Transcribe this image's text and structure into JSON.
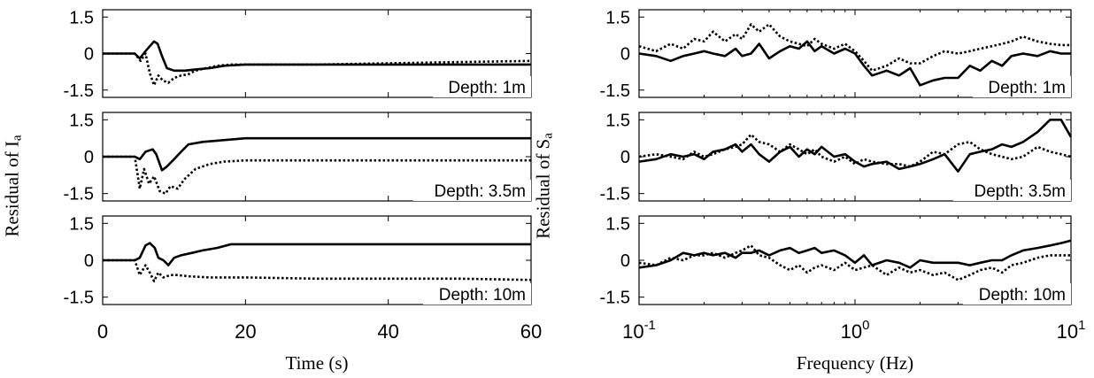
{
  "ylabel_left": {
    "base": "Residual of I",
    "sub": "a"
  },
  "ylabel_right": {
    "base": "Residual of S",
    "sub": "a"
  },
  "xlabel_left": "Time (s)",
  "xlabel_right": "Frequency (Hz)",
  "chart_data": [
    {
      "type": "line",
      "panel": "time",
      "row": 0,
      "annotation": "Depth: 1m",
      "xlim": [
        0,
        60
      ],
      "ylim": [
        -1.8,
        1.8
      ],
      "yticks": [
        "1.5",
        "0",
        "-1.5"
      ],
      "series": [
        {
          "style": "solid",
          "x": [
            0,
            4.5,
            5.2,
            6,
            6.6,
            7.2,
            7.7,
            8.3,
            9,
            10,
            11.5,
            13,
            15,
            17,
            20,
            30,
            40,
            50,
            60
          ],
          "y": [
            0,
            0,
            -0.2,
            0.1,
            0.3,
            0.5,
            0.4,
            -0.1,
            -0.6,
            -0.7,
            -0.7,
            -0.65,
            -0.6,
            -0.5,
            -0.45,
            -0.45,
            -0.45,
            -0.45,
            -0.45
          ]
        },
        {
          "style": "dotted",
          "x": [
            0,
            4.5,
            5.3,
            6,
            6.6,
            7.2,
            7.8,
            8.4,
            9.2,
            10,
            11,
            12,
            13,
            14.5,
            16,
            18,
            20,
            30,
            40,
            50,
            60
          ],
          "y": [
            0,
            0,
            -0.3,
            0,
            -0.8,
            -1.3,
            -0.9,
            -1.1,
            -1.2,
            -1.0,
            -0.9,
            -0.85,
            -0.7,
            -0.6,
            -0.5,
            -0.45,
            -0.45,
            -0.45,
            -0.4,
            -0.35,
            -0.3
          ]
        }
      ]
    },
    {
      "type": "line",
      "panel": "time",
      "row": 1,
      "annotation": "Depth: 3.5m",
      "xlim": [
        0,
        60
      ],
      "ylim": [
        -1.8,
        1.8
      ],
      "yticks": [
        "1.5",
        "0",
        "-1.5"
      ],
      "series": [
        {
          "style": "solid",
          "x": [
            0,
            4.5,
            5.2,
            6,
            7,
            7.5,
            8.3,
            9,
            10,
            11,
            12,
            14,
            16,
            18,
            20,
            30,
            40,
            50,
            60
          ],
          "y": [
            0,
            0,
            -0.1,
            0.2,
            0.3,
            0.1,
            -0.55,
            -0.4,
            -0.1,
            0.2,
            0.5,
            0.6,
            0.65,
            0.7,
            0.75,
            0.75,
            0.75,
            0.75,
            0.75
          ]
        },
        {
          "style": "dotted",
          "x": [
            0,
            4.5,
            5.2,
            5.8,
            6.5,
            7.2,
            8,
            8.8,
            9.5,
            10.5,
            11.5,
            13,
            15,
            17,
            20,
            30,
            40,
            50,
            60
          ],
          "y": [
            0,
            0,
            -1.3,
            -0.5,
            -1.1,
            -0.8,
            -1.4,
            -1.5,
            -1.2,
            -1.3,
            -0.9,
            -0.5,
            -0.3,
            -0.2,
            -0.15,
            -0.15,
            -0.15,
            -0.15,
            -0.15
          ]
        }
      ]
    },
    {
      "type": "line",
      "panel": "time",
      "row": 2,
      "annotation": "Depth: 10m",
      "xlim": [
        0,
        60
      ],
      "ylim": [
        -1.8,
        1.8
      ],
      "yticks": [
        "1.5",
        "0",
        "-1.5"
      ],
      "series": [
        {
          "style": "solid",
          "x": [
            0,
            4.5,
            5.2,
            6,
            6.6,
            7.3,
            7.8,
            8.5,
            9.2,
            10,
            11,
            12.5,
            14,
            16,
            18,
            20,
            30,
            40,
            50,
            60
          ],
          "y": [
            0,
            0,
            0.1,
            0.6,
            0.7,
            0.5,
            0.1,
            0.0,
            -0.2,
            0.1,
            0.2,
            0.3,
            0.4,
            0.5,
            0.65,
            0.65,
            0.65,
            0.65,
            0.65,
            0.65
          ]
        },
        {
          "style": "dotted",
          "x": [
            0,
            4.5,
            5.2,
            6,
            6.6,
            7.2,
            7.8,
            8.5,
            9.5,
            10.5,
            12,
            15,
            20,
            30,
            40,
            50,
            60
          ],
          "y": [
            0,
            0,
            -0.6,
            -0.2,
            -0.5,
            -0.85,
            -0.5,
            -0.7,
            -0.6,
            -0.6,
            -0.65,
            -0.7,
            -0.7,
            -0.75,
            -0.75,
            -0.75,
            -0.8
          ]
        }
      ]
    },
    {
      "type": "line",
      "panel": "frequency",
      "row": 0,
      "annotation": "Depth: 1m",
      "xscale": "log",
      "xlim": [
        0.1,
        10
      ],
      "ylim": [
        -1.8,
        1.8
      ],
      "yticks": [
        "1.5",
        "0",
        "-1.5"
      ],
      "series": [
        {
          "style": "solid",
          "x": [
            0.1,
            0.12,
            0.14,
            0.16,
            0.18,
            0.2,
            0.22,
            0.25,
            0.28,
            0.3,
            0.33,
            0.36,
            0.4,
            0.45,
            0.5,
            0.55,
            0.6,
            0.65,
            0.7,
            0.8,
            0.9,
            1.0,
            1.1,
            1.2,
            1.4,
            1.6,
            1.8,
            2.0,
            2.3,
            2.6,
            3.0,
            3.4,
            3.8,
            4.3,
            4.8,
            5.3,
            6,
            7,
            8,
            9,
            10
          ],
          "y": [
            0.0,
            -0.1,
            -0.3,
            -0.1,
            0.0,
            0.1,
            0.0,
            -0.1,
            0.2,
            -0.1,
            0.0,
            0.4,
            -0.2,
            0.1,
            0.3,
            0.2,
            0.5,
            0.1,
            0.3,
            0.0,
            0.2,
            0.0,
            -0.5,
            -0.9,
            -0.7,
            -0.9,
            -0.6,
            -1.3,
            -1.1,
            -1.0,
            -1.0,
            -0.5,
            -0.7,
            -0.3,
            -0.5,
            -0.1,
            0.0,
            -0.1,
            0.1,
            0.0,
            0.0
          ]
        },
        {
          "style": "dotted",
          "x": [
            0.1,
            0.12,
            0.14,
            0.16,
            0.18,
            0.2,
            0.22,
            0.25,
            0.28,
            0.3,
            0.33,
            0.36,
            0.4,
            0.45,
            0.5,
            0.55,
            0.6,
            0.65,
            0.7,
            0.8,
            0.9,
            1.0,
            1.1,
            1.2,
            1.4,
            1.6,
            1.8,
            2.0,
            2.3,
            2.6,
            3.0,
            3.4,
            3.8,
            4.3,
            4.8,
            5.3,
            6,
            7,
            8,
            9,
            10
          ],
          "y": [
            0.3,
            0.1,
            0.4,
            0.2,
            0.6,
            0.5,
            0.9,
            0.5,
            0.8,
            0.6,
            1.2,
            0.9,
            1.2,
            0.7,
            0.5,
            0.4,
            0.3,
            0.6,
            0.4,
            0.2,
            0.4,
            0.1,
            -0.3,
            -0.7,
            -0.5,
            -0.2,
            -0.4,
            -0.4,
            -0.1,
            0.1,
            0.0,
            0.1,
            0.2,
            0.3,
            0.4,
            0.5,
            0.7,
            0.5,
            0.4,
            0.35,
            0.35
          ]
        }
      ]
    },
    {
      "type": "line",
      "panel": "frequency",
      "row": 1,
      "annotation": "Depth: 3.5m",
      "xscale": "log",
      "xlim": [
        0.1,
        10
      ],
      "ylim": [
        -1.8,
        1.8
      ],
      "yticks": [
        "1.5",
        "0",
        "-1.5"
      ],
      "series": [
        {
          "style": "solid",
          "x": [
            0.1,
            0.12,
            0.14,
            0.16,
            0.18,
            0.2,
            0.22,
            0.25,
            0.28,
            0.3,
            0.33,
            0.36,
            0.4,
            0.45,
            0.5,
            0.55,
            0.6,
            0.65,
            0.7,
            0.8,
            0.9,
            1.0,
            1.1,
            1.2,
            1.4,
            1.6,
            1.8,
            2.0,
            2.3,
            2.6,
            3.0,
            3.4,
            3.8,
            4.3,
            4.8,
            5.3,
            6,
            7,
            8,
            9,
            10
          ],
          "y": [
            -0.2,
            -0.1,
            0.1,
            0.0,
            0.1,
            -0.1,
            0.2,
            0.3,
            0.5,
            0.2,
            0.5,
            0.1,
            -0.2,
            0.2,
            0.4,
            0.0,
            0.3,
            0.1,
            0.4,
            0.0,
            0.1,
            -0.2,
            -0.4,
            -0.3,
            -0.2,
            -0.5,
            -0.4,
            -0.3,
            -0.1,
            0.1,
            -0.6,
            0.1,
            0.2,
            0.3,
            0.5,
            0.4,
            0.6,
            1.0,
            1.5,
            1.5,
            0.8
          ]
        },
        {
          "style": "dotted",
          "x": [
            0.1,
            0.12,
            0.14,
            0.16,
            0.18,
            0.2,
            0.22,
            0.25,
            0.28,
            0.3,
            0.33,
            0.36,
            0.4,
            0.45,
            0.5,
            0.55,
            0.6,
            0.65,
            0.7,
            0.8,
            0.9,
            1.0,
            1.1,
            1.2,
            1.4,
            1.6,
            1.8,
            2.0,
            2.3,
            2.6,
            3.0,
            3.4,
            3.8,
            4.3,
            4.8,
            5.3,
            6,
            7,
            8,
            9,
            10
          ],
          "y": [
            0.0,
            0.1,
            0.0,
            -0.1,
            0.2,
            0.0,
            0.1,
            0.3,
            0.4,
            0.5,
            0.9,
            0.6,
            0.5,
            0.2,
            0.5,
            0.3,
            0.1,
            0.3,
            0.0,
            -0.2,
            0.0,
            -0.3,
            -0.1,
            -0.2,
            -0.3,
            -0.3,
            -0.4,
            -0.2,
            0.2,
            0.1,
            0.5,
            0.6,
            0.3,
            0.1,
            0.0,
            -0.1,
            0.0,
            0.4,
            0.2,
            0.1,
            0.0
          ]
        }
      ]
    },
    {
      "type": "line",
      "panel": "frequency",
      "row": 2,
      "annotation": "Depth: 10m",
      "xscale": "log",
      "xlim": [
        0.1,
        10
      ],
      "ylim": [
        -1.8,
        1.8
      ],
      "yticks": [
        "1.5",
        "0",
        "-1.5"
      ],
      "series": [
        {
          "style": "solid",
          "x": [
            0.1,
            0.12,
            0.14,
            0.16,
            0.18,
            0.2,
            0.22,
            0.25,
            0.28,
            0.3,
            0.33,
            0.36,
            0.4,
            0.45,
            0.5,
            0.55,
            0.6,
            0.65,
            0.7,
            0.8,
            0.9,
            1.0,
            1.1,
            1.2,
            1.4,
            1.6,
            1.8,
            2.0,
            2.3,
            2.6,
            3.0,
            3.4,
            3.8,
            4.3,
            4.8,
            5.3,
            6,
            7,
            8,
            9,
            10
          ],
          "y": [
            -0.3,
            -0.2,
            0.0,
            0.3,
            0.2,
            0.3,
            0.2,
            0.3,
            0.1,
            0.3,
            0.3,
            0.4,
            0.2,
            0.4,
            0.5,
            0.3,
            0.4,
            0.5,
            0.3,
            0.4,
            0.2,
            -0.1,
            0.2,
            -0.2,
            0.0,
            -0.1,
            -0.3,
            0.0,
            -0.1,
            -0.1,
            -0.1,
            -0.2,
            -0.1,
            0.0,
            0.0,
            0.2,
            0.4,
            0.5,
            0.6,
            0.7,
            0.8
          ]
        },
        {
          "style": "dotted",
          "x": [
            0.1,
            0.12,
            0.14,
            0.16,
            0.18,
            0.2,
            0.22,
            0.25,
            0.28,
            0.3,
            0.33,
            0.36,
            0.4,
            0.45,
            0.5,
            0.55,
            0.6,
            0.65,
            0.7,
            0.8,
            0.9,
            1.0,
            1.1,
            1.2,
            1.4,
            1.6,
            1.8,
            2.0,
            2.3,
            2.6,
            3.0,
            3.4,
            3.8,
            4.3,
            4.8,
            5.3,
            6,
            7,
            8,
            9,
            10
          ],
          "y": [
            -0.1,
            -0.2,
            0.1,
            0.0,
            0.2,
            0.2,
            0.3,
            0.1,
            0.3,
            0.4,
            0.6,
            0.2,
            0.1,
            -0.2,
            -0.4,
            -0.2,
            -0.5,
            -0.3,
            -0.2,
            -0.4,
            -0.1,
            -0.4,
            -0.3,
            -0.2,
            -0.6,
            -0.3,
            -0.5,
            -0.4,
            -0.6,
            -0.5,
            -0.8,
            -0.6,
            -0.4,
            -0.3,
            -0.5,
            -0.2,
            -0.1,
            0.1,
            0.2,
            0.2,
            0.2
          ]
        }
      ]
    }
  ],
  "axes": {
    "time_ticks": [
      "0",
      "20",
      "40",
      "60"
    ],
    "freq_ticks": [
      {
        "base": "10",
        "exp": "-1"
      },
      {
        "base": "10",
        "exp": "0"
      },
      {
        "base": "10",
        "exp": "1"
      }
    ]
  }
}
